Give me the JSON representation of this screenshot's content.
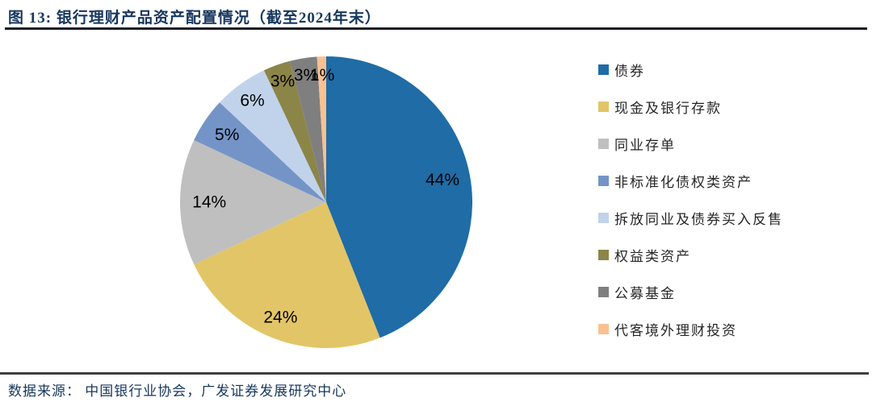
{
  "header": {
    "title": "图 13: 银行理财产品资产配置情况（截至2024年末）"
  },
  "footer": {
    "source": "数据来源： 中国银行业协会，广发证券发展研究中心"
  },
  "chart_data": {
    "type": "pie",
    "title": "银行理财产品资产配置情况（截至2024年末）",
    "start_angle_deg": 0,
    "direction": "clockwise",
    "legend_position": "right",
    "value_label_format": "percent",
    "label_color": "#000000",
    "slices": [
      {
        "label": "债券",
        "value": 44,
        "display": "44%",
        "color": "#1F6CA6"
      },
      {
        "label": "现金及银行存款",
        "value": 24,
        "display": "24%",
        "color": "#E2C567"
      },
      {
        "label": "同业存单",
        "value": 14,
        "display": "14%",
        "color": "#BFBFBF"
      },
      {
        "label": "非标准化债权类资产",
        "value": 5,
        "display": "5%",
        "color": "#7494C8"
      },
      {
        "label": "拆放同业及债券买入反售",
        "value": 6,
        "display": "6%",
        "color": "#C1D3EA"
      },
      {
        "label": "权益类资产",
        "value": 3,
        "display": "3%",
        "color": "#8B8548"
      },
      {
        "label": "公募基金",
        "value": 3,
        "display": "3%",
        "color": "#7F7F7F"
      },
      {
        "label": "代客境外理财投资",
        "value": 1,
        "display": "1%",
        "color": "#F9C191"
      }
    ]
  }
}
